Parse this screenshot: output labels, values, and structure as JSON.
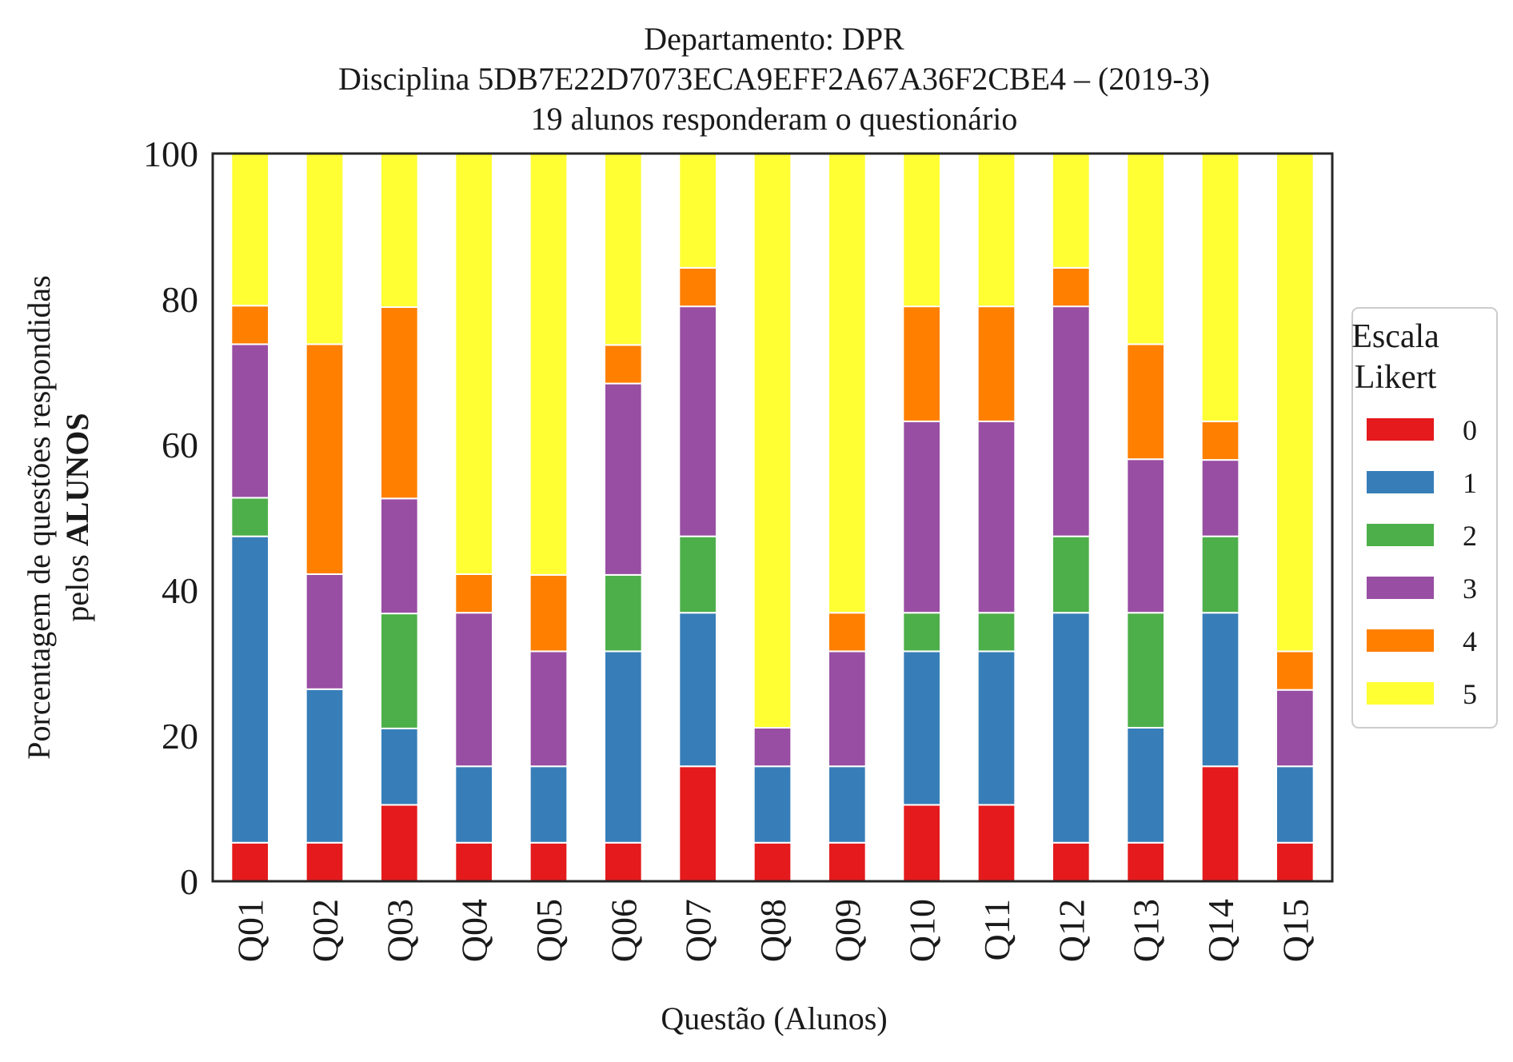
{
  "chart_data": {
    "type": "bar",
    "stacked": true,
    "title_lines": [
      "Departamento: DPR",
      "Disciplina 5DB7E22D7073ECA9EFF2A67A36F2CBE4 – (2019-3)",
      "19 alunos responderam o questionário"
    ],
    "xlabel": "Questão (Alunos)",
    "ylabel_line1": "Porcentagem de questões respondidas",
    "ylabel_line2_prefix": "pelos ",
    "ylabel_line2_bold": "ALUNOS",
    "ylim": [
      0,
      100
    ],
    "yticks": [
      "0",
      "20",
      "40",
      "60",
      "80",
      "100"
    ],
    "grid": false,
    "categories": [
      "Q01",
      "Q02",
      "Q03",
      "Q04",
      "Q05",
      "Q06",
      "Q07",
      "Q08",
      "Q09",
      "Q10",
      "Q11",
      "Q12",
      "Q13",
      "Q14",
      "Q15"
    ],
    "legend": {
      "title_lines": [
        "Escala",
        "Likert"
      ],
      "placement": "right"
    },
    "series": [
      {
        "name": "0",
        "color": "#e41a1c",
        "values": [
          5.3,
          5.3,
          10.5,
          5.3,
          5.3,
          5.3,
          15.8,
          5.3,
          5.3,
          10.5,
          10.5,
          5.3,
          5.3,
          15.8,
          5.3
        ]
      },
      {
        "name": "1",
        "color": "#377eb8",
        "values": [
          42.1,
          21.1,
          10.5,
          10.5,
          10.5,
          26.3,
          21.1,
          10.5,
          10.5,
          21.1,
          21.1,
          31.6,
          15.8,
          21.1,
          10.5
        ]
      },
      {
        "name": "2",
        "color": "#4daf4a",
        "values": [
          5.3,
          0,
          15.8,
          0,
          0,
          10.5,
          10.5,
          0,
          0,
          5.3,
          5.3,
          10.5,
          15.8,
          10.5,
          0
        ]
      },
      {
        "name": "3",
        "color": "#984ea3",
        "values": [
          21.1,
          15.8,
          15.8,
          21.1,
          15.8,
          26.3,
          31.6,
          5.3,
          15.8,
          26.3,
          26.3,
          31.6,
          21.1,
          10.5,
          10.5
        ]
      },
      {
        "name": "4",
        "color": "#ff7f00",
        "values": [
          5.3,
          31.6,
          26.3,
          5.3,
          10.5,
          5.3,
          5.3,
          0,
          5.3,
          15.8,
          15.8,
          5.3,
          15.8,
          5.3,
          5.3
        ]
      },
      {
        "name": "5",
        "color": "#ffff33",
        "values": [
          21.1,
          26.3,
          21.1,
          57.9,
          57.9,
          26.3,
          15.8,
          78.9,
          63.2,
          21.1,
          21.1,
          15.8,
          26.3,
          36.8,
          68.4
        ]
      }
    ]
  }
}
